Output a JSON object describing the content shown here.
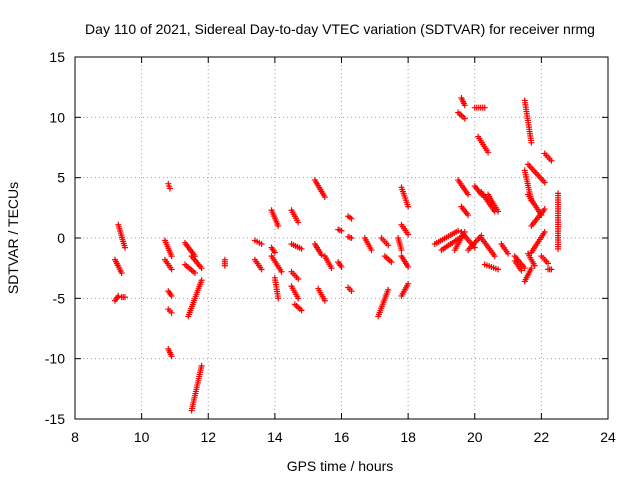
{
  "chart_data": {
    "type": "scatter",
    "title": "Day 110 of 2021, Sidereal Day-to-day VTEC variation (SDTVAR) for receiver nrmg",
    "xlabel": "GPS time / hours",
    "ylabel": "SDTVAR / TECUs",
    "xlim": [
      8,
      24
    ],
    "ylim": [
      -15,
      15
    ],
    "xticks": [
      8,
      10,
      12,
      14,
      16,
      18,
      20,
      22,
      24
    ],
    "yticks": [
      -15,
      -10,
      -5,
      0,
      5,
      10,
      15
    ],
    "xtick_labels": [
      "8",
      "10",
      "12",
      "14",
      "16",
      "18",
      "20",
      "22",
      "24"
    ],
    "ytick_labels": [
      "-15",
      "-10",
      "-5",
      "0",
      "5",
      "10",
      "15"
    ],
    "grid": true,
    "marker": "plus",
    "color": "#ff0000",
    "series": [
      {
        "name": "SDTVAR",
        "segments": [
          {
            "x": [
              9.2,
              9.4
            ],
            "y": [
              -1.8,
              -2.9
            ]
          },
          {
            "x": [
              9.2,
              9.3
            ],
            "y": [
              -5.2,
              -4.8
            ]
          },
          {
            "x": [
              9.3,
              9.5
            ],
            "y": [
              1.1,
              -0.8
            ]
          },
          {
            "x": [
              9.4,
              9.5
            ],
            "y": [
              -4.9,
              -4.9
            ]
          },
          {
            "x": [
              10.7,
              10.9
            ],
            "y": [
              -0.2,
              -1.5
            ]
          },
          {
            "x": [
              10.7,
              10.9
            ],
            "y": [
              -1.8,
              -2.6
            ]
          },
          {
            "x": [
              10.8,
              10.85
            ],
            "y": [
              4.5,
              4.1
            ]
          },
          {
            "x": [
              10.8,
              10.9
            ],
            "y": [
              -4.4,
              -4.8
            ]
          },
          {
            "x": [
              10.8,
              10.9
            ],
            "y": [
              -5.9,
              -6.2
            ]
          },
          {
            "x": [
              10.8,
              10.9
            ],
            "y": [
              -9.2,
              -9.8
            ]
          },
          {
            "x": [
              11.3,
              11.6
            ],
            "y": [
              -0.4,
              -1.5
            ]
          },
          {
            "x": [
              11.3,
              11.6
            ],
            "y": [
              -2.2,
              -2.9
            ]
          },
          {
            "x": [
              11.5,
              11.8
            ],
            "y": [
              -1.5,
              -2.5
            ]
          },
          {
            "x": [
              11.4,
              11.8
            ],
            "y": [
              -6.5,
              -3.5
            ]
          },
          {
            "x": [
              11.5,
              11.8
            ],
            "y": [
              -14.3,
              -10.6
            ]
          },
          {
            "x": [
              12.5,
              12.5
            ],
            "y": [
              -1.8,
              -2.3
            ]
          },
          {
            "x": [
              13.4,
              13.6
            ],
            "y": [
              -0.2,
              -0.5
            ]
          },
          {
            "x": [
              13.4,
              13.6
            ],
            "y": [
              -1.8,
              -2.6
            ]
          },
          {
            "x": [
              13.9,
              14.1
            ],
            "y": [
              2.3,
              1.0
            ]
          },
          {
            "x": [
              13.9,
              14.0
            ],
            "y": [
              -0.8,
              -1.2
            ]
          },
          {
            "x": [
              13.9,
              14.2
            ],
            "y": [
              -1.5,
              -2.8
            ]
          },
          {
            "x": [
              14.0,
              14.1
            ],
            "y": [
              -3.3,
              -5.0
            ]
          },
          {
            "x": [
              14.5,
              14.7
            ],
            "y": [
              2.3,
              1.3
            ]
          },
          {
            "x": [
              14.5,
              14.8
            ],
            "y": [
              -0.5,
              -0.9
            ]
          },
          {
            "x": [
              14.5,
              14.7
            ],
            "y": [
              -2.8,
              -3.4
            ]
          },
          {
            "x": [
              14.5,
              14.7
            ],
            "y": [
              -4.0,
              -5.0
            ]
          },
          {
            "x": [
              14.6,
              14.8
            ],
            "y": [
              -5.5,
              -6.0
            ]
          },
          {
            "x": [
              15.2,
              15.5
            ],
            "y": [
              4.8,
              3.4
            ]
          },
          {
            "x": [
              15.2,
              15.4
            ],
            "y": [
              -0.5,
              -1.4
            ]
          },
          {
            "x": [
              15.3,
              15.5
            ],
            "y": [
              -4.2,
              -5.2
            ]
          },
          {
            "x": [
              15.5,
              15.7
            ],
            "y": [
              -1.5,
              -2.5
            ]
          },
          {
            "x": [
              15.9,
              16.0
            ],
            "y": [
              0.7,
              0.6
            ]
          },
          {
            "x": [
              15.9,
              16.0
            ],
            "y": [
              -2.0,
              -2.4
            ]
          },
          {
            "x": [
              16.2,
              16.3
            ],
            "y": [
              1.8,
              1.6
            ]
          },
          {
            "x": [
              16.2,
              16.3
            ],
            "y": [
              0.1,
              0.0
            ]
          },
          {
            "x": [
              16.2,
              16.3
            ],
            "y": [
              -4.1,
              -4.4
            ]
          },
          {
            "x": [
              16.7,
              16.9
            ],
            "y": [
              0.0,
              -1.0
            ]
          },
          {
            "x": [
              17.1,
              17.4
            ],
            "y": [
              -6.5,
              -4.3
            ]
          },
          {
            "x": [
              17.2,
              17.4
            ],
            "y": [
              0.0,
              -0.6
            ]
          },
          {
            "x": [
              17.3,
              17.5
            ],
            "y": [
              -1.5,
              -2.0
            ]
          },
          {
            "x": [
              17.7,
              17.8
            ],
            "y": [
              0.0,
              -1.0
            ]
          },
          {
            "x": [
              17.8,
              18.0
            ],
            "y": [
              4.2,
              2.6
            ]
          },
          {
            "x": [
              17.8,
              18.0
            ],
            "y": [
              1.1,
              0.3
            ]
          },
          {
            "x": [
              17.8,
              18.0
            ],
            "y": [
              -1.5,
              -2.4
            ]
          },
          {
            "x": [
              17.8,
              18.0
            ],
            "y": [
              -4.8,
              -3.8
            ]
          },
          {
            "x": [
              18.8,
              19.5
            ],
            "y": [
              -0.5,
              0.6
            ]
          },
          {
            "x": [
              19.0,
              19.6
            ],
            "y": [
              -1.0,
              0.1
            ]
          },
          {
            "x": [
              19.4,
              19.7
            ],
            "y": [
              -1.0,
              0.5
            ]
          },
          {
            "x": [
              19.5,
              19.7
            ],
            "y": [
              10.4,
              9.9
            ]
          },
          {
            "x": [
              19.6,
              19.7
            ],
            "y": [
              11.6,
              11.0
            ]
          },
          {
            "x": [
              19.5,
              19.8
            ],
            "y": [
              4.8,
              3.6
            ]
          },
          {
            "x": [
              19.6,
              19.8
            ],
            "y": [
              2.6,
              1.9
            ]
          },
          {
            "x": [
              19.6,
              20.0
            ],
            "y": [
              0.5,
              -0.8
            ]
          },
          {
            "x": [
              19.8,
              20.2
            ],
            "y": [
              -1.0,
              0.2
            ]
          },
          {
            "x": [
              20.0,
              20.3
            ],
            "y": [
              10.8,
              10.8
            ]
          },
          {
            "x": [
              20.0,
              20.2
            ],
            "y": [
              4.3,
              3.6
            ]
          },
          {
            "x": [
              20.1,
              20.4
            ],
            "y": [
              8.4,
              7.1
            ]
          },
          {
            "x": [
              20.2,
              20.6
            ],
            "y": [
              3.8,
              2.2
            ]
          },
          {
            "x": [
              20.2,
              20.6
            ],
            "y": [
              0.0,
              -1.5
            ]
          },
          {
            "x": [
              20.3,
              20.7
            ],
            "y": [
              -2.2,
              -2.6
            ]
          },
          {
            "x": [
              20.4,
              20.7
            ],
            "y": [
              3.6,
              2.2
            ]
          },
          {
            "x": [
              20.8,
              21.0
            ],
            "y": [
              -0.5,
              -1.3
            ]
          },
          {
            "x": [
              21.2,
              21.5
            ],
            "y": [
              -1.5,
              -2.5
            ]
          },
          {
            "x": [
              21.2,
              21.4
            ],
            "y": [
              -1.9,
              -2.7
            ]
          },
          {
            "x": [
              21.5,
              21.7
            ],
            "y": [
              11.4,
              7.9
            ]
          },
          {
            "x": [
              21.5,
              21.7
            ],
            "y": [
              5.6,
              3.1
            ]
          },
          {
            "x": [
              21.6,
              22.0
            ],
            "y": [
              3.6,
              1.9
            ]
          },
          {
            "x": [
              21.5,
              21.7
            ],
            "y": [
              -3.6,
              -2.5
            ]
          },
          {
            "x": [
              21.6,
              21.8
            ],
            "y": [
              -1.3,
              -2.3
            ]
          },
          {
            "x": [
              21.6,
              22.1
            ],
            "y": [
              6.1,
              4.6
            ]
          },
          {
            "x": [
              21.7,
              22.1
            ],
            "y": [
              1.0,
              2.4
            ]
          },
          {
            "x": [
              21.7,
              22.1
            ],
            "y": [
              -1.2,
              0.5
            ]
          },
          {
            "x": [
              22.0,
              22.2
            ],
            "y": [
              -1.5,
              -2.1
            ]
          },
          {
            "x": [
              22.1,
              22.3
            ],
            "y": [
              7.0,
              6.4
            ]
          },
          {
            "x": [
              22.2,
              22.3
            ],
            "y": [
              -2.6,
              -2.6
            ]
          },
          {
            "x": [
              22.5,
              22.5
            ],
            "y": [
              3.7,
              -0.9
            ]
          }
        ]
      }
    ]
  }
}
